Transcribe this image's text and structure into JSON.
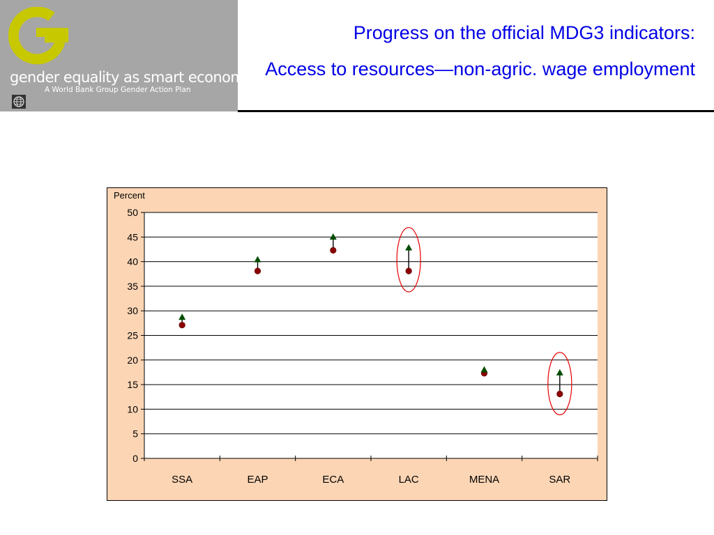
{
  "logo": {
    "tagline": "gender equality as smart economics",
    "subline": "A World Bank Group Gender Action Plan",
    "brand_color": "#c8c800",
    "icon": "world-bank-seal-icon"
  },
  "title": {
    "line1": "Progress on the official MDG3 indicators:",
    "line2": "Access to resources—non-agric. wage employment",
    "color": "#0000e6"
  },
  "chart_data": {
    "type": "scatter",
    "ylabel": "Percent",
    "xlabel": "",
    "ylim": [
      0,
      50
    ],
    "yticks": [
      0,
      5,
      10,
      15,
      20,
      25,
      30,
      35,
      40,
      45,
      50
    ],
    "grid": true,
    "categories": [
      "SSA",
      "EAP",
      "ECA",
      "LAC",
      "MENA",
      "SAR"
    ],
    "series": [
      {
        "marker": "circle",
        "color": "#8b0000",
        "values": [
          27.1,
          38.1,
          42.3,
          38.1,
          17.3,
          13.1
        ]
      },
      {
        "marker": "triangle",
        "color": "#004d00",
        "values": [
          28.6,
          40.3,
          44.9,
          42.7,
          17.9,
          17.3
        ]
      }
    ],
    "highlighted": [
      "LAC",
      "SAR"
    ],
    "highlight_color": "#e60000"
  }
}
